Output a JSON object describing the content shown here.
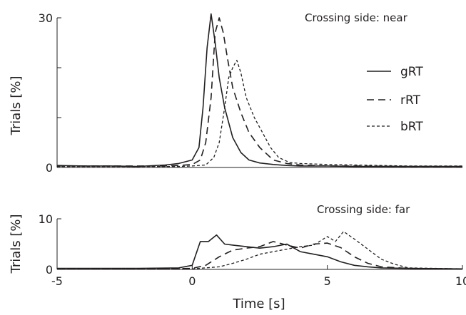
{
  "chart_data": [
    {
      "type": "line",
      "annotation": "Crossing side: near",
      "ylabel": "Trials [%]",
      "xlabel": "",
      "xlim": [
        -5,
        10
      ],
      "ylim": [
        0,
        30
      ],
      "yticks": [
        0,
        30
      ],
      "yticks_unlabeled": [
        10,
        20
      ],
      "legend_placement": "right",
      "series": [
        {
          "name": "gRT",
          "style": "solid",
          "x": [
            -5,
            -4,
            -3,
            -2,
            -1,
            -0.5,
            0,
            0.25,
            0.4,
            0.55,
            0.7,
            0.85,
            1.0,
            1.2,
            1.5,
            1.8,
            2.1,
            2.5,
            3,
            3.5,
            4,
            5,
            6,
            8,
            10
          ],
          "y": [
            0.4,
            0.3,
            0.3,
            0.2,
            0.5,
            0.8,
            1.5,
            4,
            12,
            24,
            30.8,
            25,
            18,
            12,
            6,
            3,
            1.5,
            0.9,
            0.6,
            0.4,
            0.3,
            0.3,
            0.2,
            0.2,
            0.2
          ]
        },
        {
          "name": "rRT",
          "style": "dashed",
          "x": [
            -5,
            -3,
            -1,
            -0.5,
            0,
            0.3,
            0.5,
            0.7,
            0.85,
            1.0,
            1.15,
            1.3,
            1.5,
            1.8,
            2.1,
            2.5,
            3,
            3.5,
            4,
            5,
            6,
            8,
            10
          ],
          "y": [
            0.3,
            0.3,
            0.3,
            0.4,
            0.6,
            1.5,
            5,
            14,
            27,
            30,
            27,
            22,
            16,
            11,
            7,
            4,
            1.5,
            0.8,
            0.5,
            0.3,
            0.3,
            0.2,
            0.2
          ]
        },
        {
          "name": "bRT",
          "style": "dotted",
          "x": [
            -5,
            -2,
            -0.5,
            0,
            0.5,
            0.8,
            1.0,
            1.2,
            1.35,
            1.5,
            1.65,
            1.8,
            2.0,
            2.3,
            2.6,
            2.9,
            3.2,
            3.6,
            4,
            5,
            6,
            8,
            10
          ],
          "y": [
            0.2,
            0.2,
            0.2,
            0.3,
            0.5,
            2,
            5,
            12,
            18,
            20,
            21.5,
            19,
            14,
            10,
            7,
            4,
            2,
            1,
            0.8,
            0.6,
            0.5,
            0.3,
            0.3
          ]
        }
      ]
    },
    {
      "type": "line",
      "annotation": "Crossing side: far",
      "ylabel": "Trials [%]",
      "xlabel": "Time [s]",
      "xlim": [
        -5,
        10
      ],
      "ylim": [
        0,
        10
      ],
      "yticks": [
        0,
        10
      ],
      "xticks": [
        -5,
        0,
        5,
        10
      ],
      "series": [
        {
          "name": "gRT",
          "style": "solid",
          "x": [
            -5,
            -2,
            -0.5,
            0,
            0.3,
            0.6,
            0.9,
            1.2,
            1.5,
            2,
            2.5,
            3,
            3.5,
            4,
            4.5,
            5,
            5.5,
            6,
            6.5,
            7,
            8,
            10
          ],
          "y": [
            0.2,
            0.2,
            0.3,
            0.8,
            5.5,
            5.5,
            6.8,
            5,
            4.8,
            4.5,
            4.2,
            4.5,
            5,
            3.5,
            3,
            2.5,
            1.5,
            0.8,
            0.5,
            0.3,
            0.2,
            0.1
          ]
        },
        {
          "name": "rRT",
          "style": "dashed",
          "x": [
            -5,
            -1,
            0,
            0.5,
            1,
            1.5,
            2,
            2.5,
            3,
            3.5,
            4,
            4.5,
            5,
            5.5,
            6,
            6.5,
            7,
            8,
            10
          ],
          "y": [
            0.1,
            0.1,
            0.2,
            0.8,
            2.5,
            3.8,
            4.2,
            4.5,
            5.5,
            4.8,
            4.2,
            5,
            5.2,
            4.3,
            2.5,
            1.2,
            0.5,
            0.2,
            0.1
          ]
        },
        {
          "name": "bRT",
          "style": "dotted",
          "x": [
            -5,
            -1,
            0,
            1,
            1.5,
            2,
            2.5,
            3,
            3.5,
            4,
            4.5,
            5,
            5.3,
            5.6,
            6,
            6.5,
            7,
            7.5,
            8,
            10
          ],
          "y": [
            0.1,
            0.1,
            0.1,
            0.5,
            1.2,
            2,
            3,
            3.5,
            4,
            4.5,
            4.8,
            6.5,
            5.5,
            7.5,
            6,
            4,
            2,
            1,
            0.3,
            0.1
          ]
        }
      ]
    }
  ]
}
